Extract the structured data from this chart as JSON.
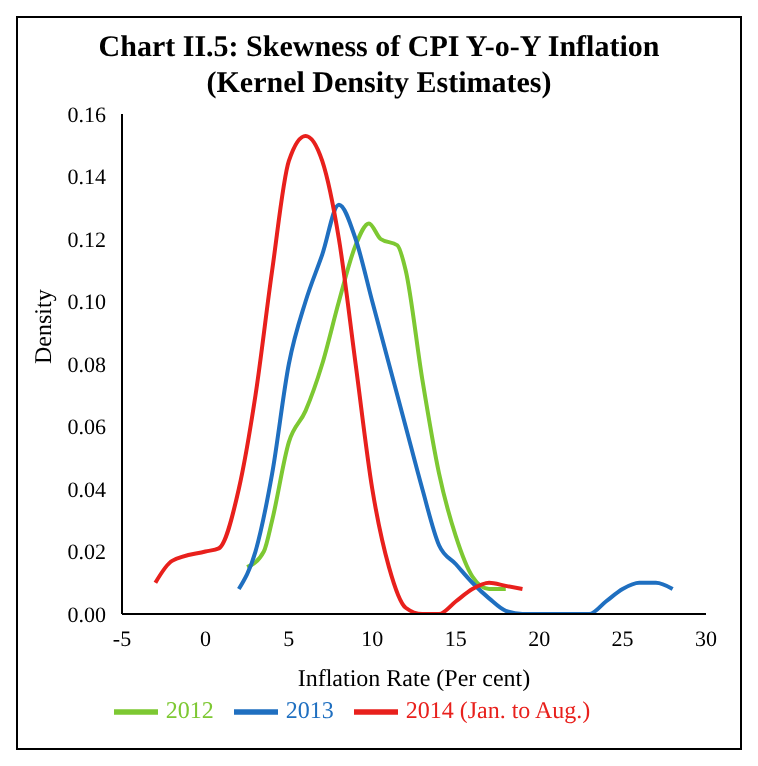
{
  "chart_data": {
    "type": "line",
    "title": "Chart II.5: Skewness of CPI Y-o-Y Inflation\n(Kernel Density Estimates)",
    "xlabel": "Inflation Rate (Per cent)",
    "ylabel": "Density",
    "xlim": [
      -5,
      30
    ],
    "xticks": [
      -5,
      0,
      5,
      10,
      15,
      20,
      25,
      30
    ],
    "ylim": [
      0,
      0.16
    ],
    "yticks": [
      {
        "value": 0,
        "label": "0.00"
      },
      {
        "value": 0.02,
        "label": "0.02"
      },
      {
        "value": 0.04,
        "label": "0.04"
      },
      {
        "value": 0.06,
        "label": "0.06"
      },
      {
        "value": 0.08,
        "label": "0.08"
      },
      {
        "value": 0.1,
        "label": "0.10"
      },
      {
        "value": 0.12,
        "label": "0.12"
      },
      {
        "value": 0.14,
        "label": "0.14"
      },
      {
        "value": 0.16,
        "label": "0.16"
      }
    ],
    "grid": false,
    "legend": "bottom",
    "marker": "none",
    "series": [
      {
        "name": "2012",
        "color": "#7dc832",
        "x": [
          2.5,
          3.5,
          4,
          5,
          6,
          7,
          8,
          9,
          9.8,
          10.5,
          11.5,
          12,
          13,
          14,
          15,
          16,
          17,
          18
        ],
        "values": [
          0.015,
          0.02,
          0.03,
          0.055,
          0.065,
          0.08,
          0.1,
          0.118,
          0.125,
          0.12,
          0.118,
          0.11,
          0.075,
          0.045,
          0.025,
          0.012,
          0.008,
          0.008
        ]
      },
      {
        "name": "2013",
        "color": "#1f6fc0",
        "x": [
          2,
          3,
          4,
          5,
          6,
          7,
          8,
          9,
          10,
          11,
          12,
          13,
          14,
          15,
          16,
          17,
          18,
          19,
          23,
          24,
          25,
          26,
          27,
          28
        ],
        "values": [
          0.008,
          0.02,
          0.045,
          0.08,
          0.1,
          0.115,
          0.131,
          0.12,
          0.1,
          0.08,
          0.06,
          0.04,
          0.022,
          0.016,
          0.01,
          0.005,
          0.001,
          0,
          0,
          0.004,
          0.008,
          0.01,
          0.01,
          0.008
        ]
      },
      {
        "name": "2014 (Jan. to Aug.)",
        "color": "#e8201c",
        "x": [
          -3,
          -2,
          0,
          0.8,
          2,
          3,
          4,
          5,
          6,
          7,
          8,
          9,
          10,
          11,
          12,
          13,
          14,
          15,
          16,
          17,
          18,
          19
        ],
        "values": [
          0.01,
          0.017,
          0.02,
          0.021,
          0.04,
          0.07,
          0.11,
          0.145,
          0.153,
          0.145,
          0.12,
          0.08,
          0.04,
          0.015,
          0.002,
          0,
          0,
          0.004,
          0.008,
          0.01,
          0.009,
          0.008
        ]
      }
    ]
  }
}
